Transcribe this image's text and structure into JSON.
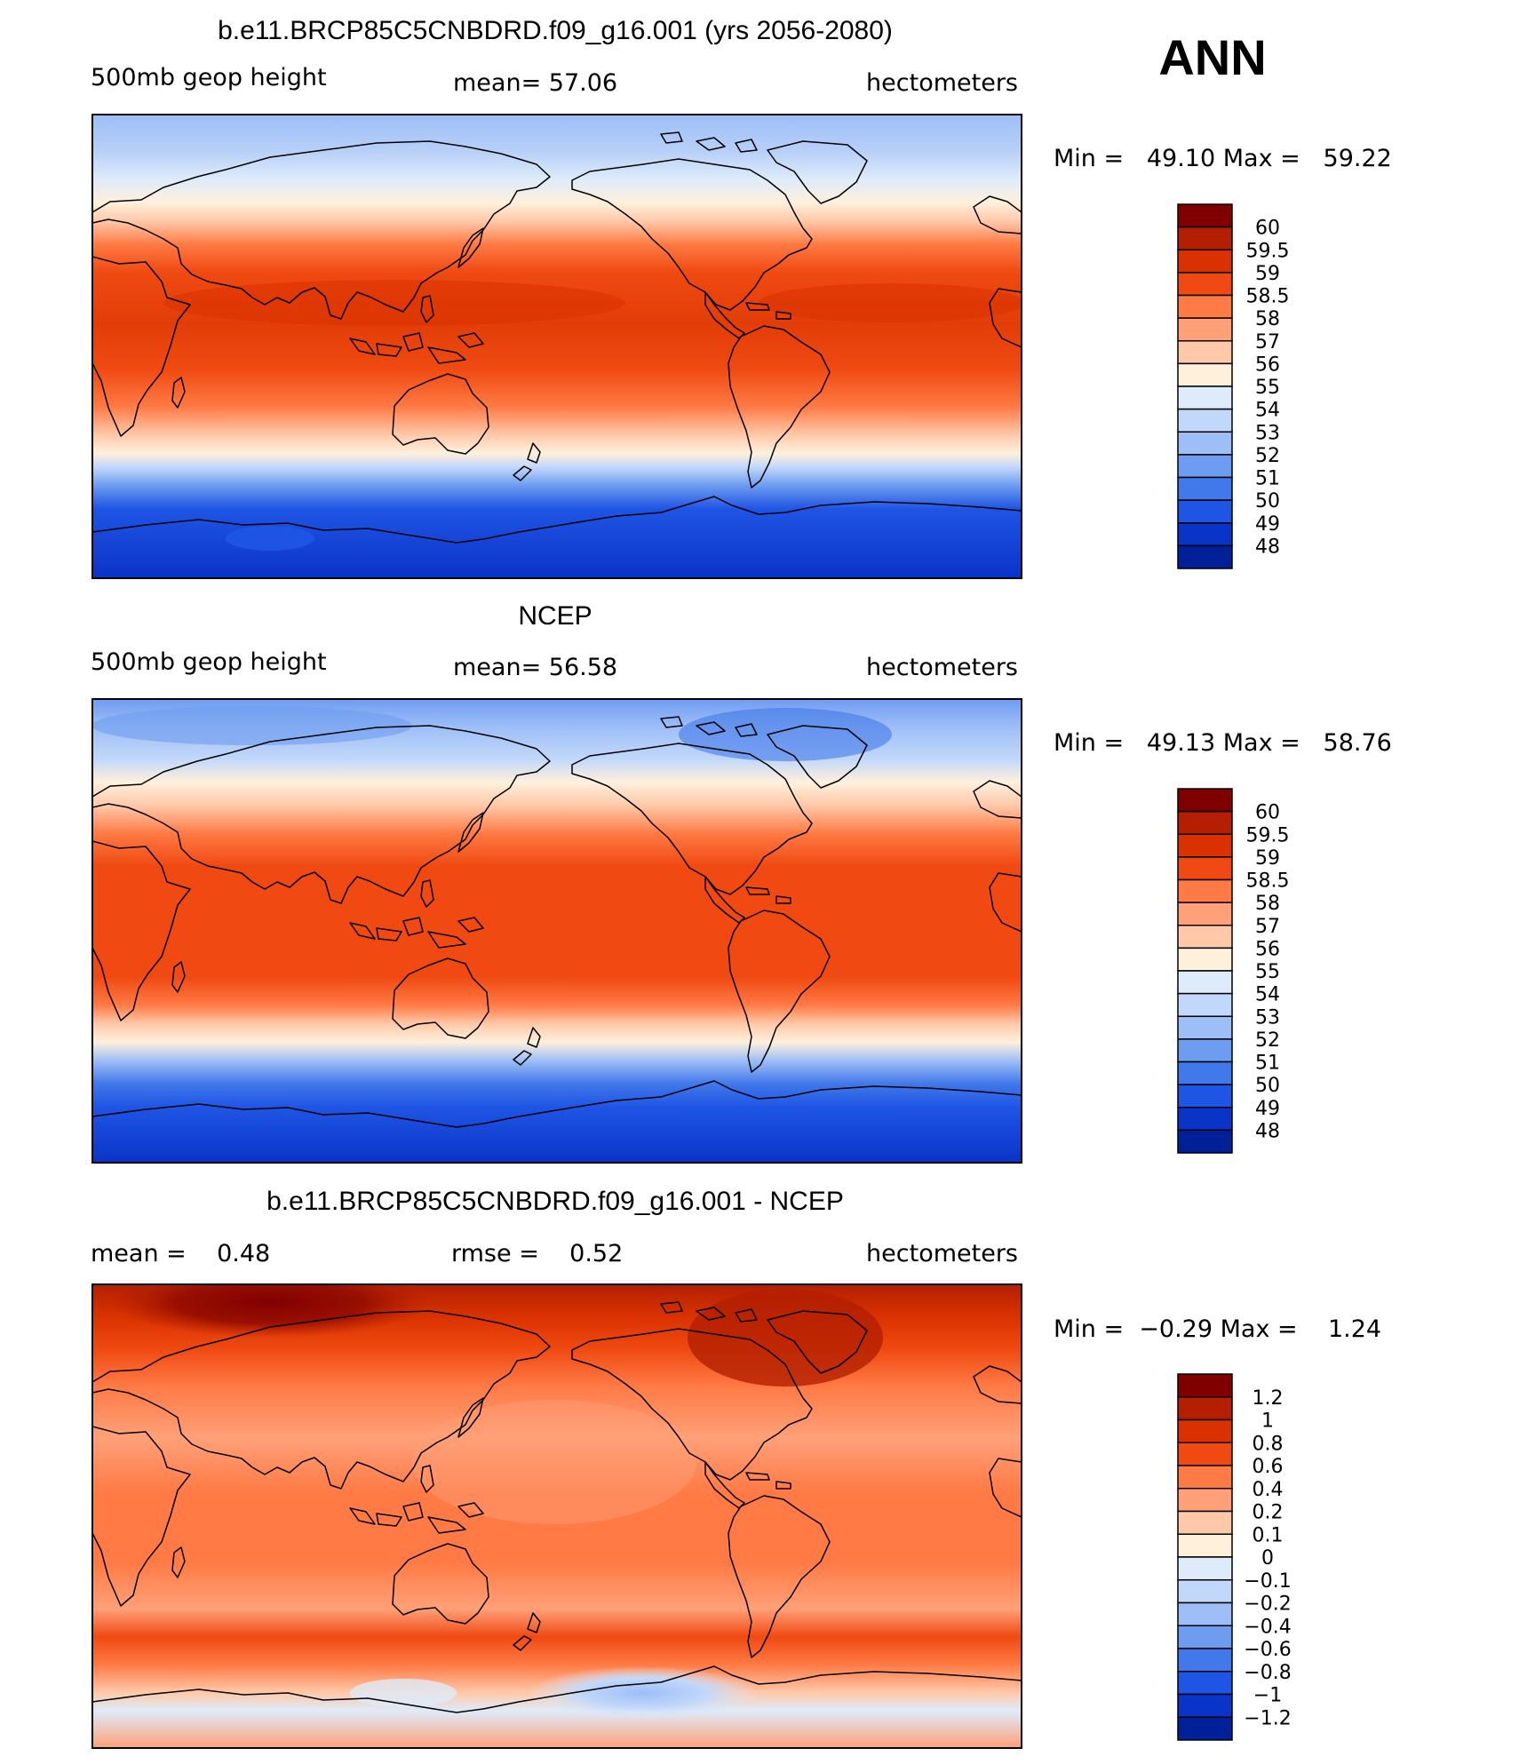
{
  "season": "ANN",
  "panels": [
    {
      "title": "b.e11.BRCP85C5CNBDRD.f09_g16.001 (yrs 2056-2080)",
      "left": "500mb geop height",
      "center": "mean=   57.06",
      "right": "hectometers",
      "minmax": "Min =   49.10 Max =   59.22",
      "legend_labels": [
        "60",
        "59.5",
        "59",
        "58.5",
        "58",
        "57",
        "56",
        "55",
        "54",
        "53",
        "52",
        "51",
        "50",
        "49",
        "48"
      ],
      "legend_colors": [
        "#800000",
        "#b31f00",
        "#d93200",
        "#f04a12",
        "#ff7a45",
        "#ffa078",
        "#ffc8a8",
        "#fff0dc",
        "#deebfa",
        "#c2d8fa",
        "#9dbef7",
        "#6e9cf0",
        "#4178ea",
        "#1f55e4",
        "#0a33c8",
        "#00209a"
      ],
      "field": "height"
    },
    {
      "title": "NCEP",
      "left": "500mb geop height",
      "center": "mean=   56.58",
      "right": "hectometers",
      "minmax": "Min =   49.13 Max =   58.76",
      "legend_labels": [
        "60",
        "59.5",
        "59",
        "58.5",
        "58",
        "57",
        "56",
        "55",
        "54",
        "53",
        "52",
        "51",
        "50",
        "49",
        "48"
      ],
      "legend_colors": [
        "#800000",
        "#b31f00",
        "#d93200",
        "#f04a12",
        "#ff7a45",
        "#ffa078",
        "#ffc8a8",
        "#fff0dc",
        "#deebfa",
        "#c2d8fa",
        "#9dbef7",
        "#6e9cf0",
        "#4178ea",
        "#1f55e4",
        "#0a33c8",
        "#00209a"
      ],
      "field": "height"
    },
    {
      "title": "b.e11.BRCP85C5CNBDRD.f09_g16.001 - NCEP",
      "left": "mean =    0.48",
      "center": "rmse =    0.52",
      "right": "hectometers",
      "minmax": "Min =  −0.29 Max =    1.24",
      "legend_labels": [
        "1.2",
        "1",
        "0.8",
        "0.6",
        "0.4",
        "0.2",
        "0.1",
        "0",
        "−0.1",
        "−0.2",
        "−0.4",
        "−0.6",
        "−0.8",
        "−1",
        "−1.2"
      ],
      "legend_colors": [
        "#800000",
        "#b31f00",
        "#d93200",
        "#f04a12",
        "#ff7a45",
        "#ffa078",
        "#ffc8a8",
        "#fff0dc",
        "#deebfa",
        "#c2d8fa",
        "#9dbef7",
        "#6e9cf0",
        "#4178ea",
        "#1f55e4",
        "#0a33c8",
        "#00209a"
      ],
      "field": "difference"
    }
  ]
}
